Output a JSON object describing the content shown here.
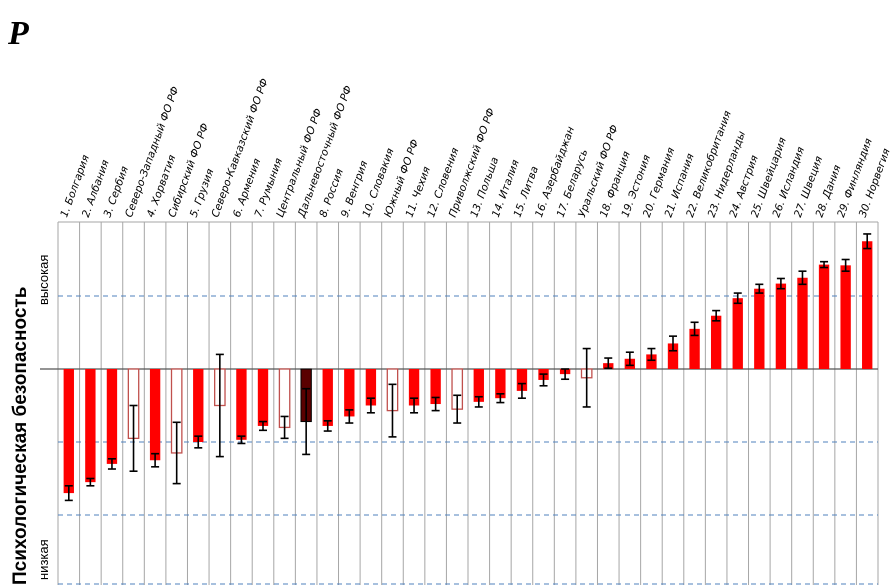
{
  "corner_letter": "P",
  "chart_data": {
    "type": "bar",
    "ylabel": "Психологическая безопасность",
    "ylabel_high": "высокая",
    "ylabel_low": "низкая",
    "ylim": [
      -3,
      2
    ],
    "grid": true,
    "colors": {
      "filled": "#ff0000",
      "hollow_edge": "#c0504d",
      "hollow_fill": "#ffffff",
      "error": "#000000",
      "dark_bar": "#5a0000"
    },
    "categories": [
      "1. Болгария",
      "2. Албания",
      "3. Сербия",
      "Северо-Западный  ФО РФ",
      "4. Хорватия",
      "Сибирский  ФО РФ",
      "5. Грузия",
      "Северо-Кавказский   ФО РФ",
      "6. Армения",
      "7. Румыния",
      "Центральный  ФО РФ",
      "Дальневосточный  ФО РФ",
      "8. Россия",
      "9. Венгрия",
      "10. Словакия",
      "Южный ФО РФ",
      "11. Чехия",
      "12. Словения",
      "Приволжский  ФО РФ",
      "13. Польша",
      "14. Италия",
      "15. Литва",
      "16. Азербайджан",
      "17. Беларусь",
      "Уральский  ФО РФ",
      "18. Франция",
      "19. Эстония",
      "20. Германия",
      "21. Испания",
      "22. Великобритания",
      "23. Нидерланды",
      "24. Австрия",
      "25. Швейцария",
      "26. Исландия",
      "27. Швеция",
      "28. Дания",
      "29. Финляндия",
      "30. Норвегия"
    ],
    "values": [
      -1.7,
      -1.55,
      -1.3,
      -0.95,
      -1.25,
      -1.15,
      -1.0,
      -0.5,
      -0.97,
      -0.78,
      -0.8,
      -0.72,
      -0.78,
      -0.65,
      -0.5,
      -0.57,
      -0.5,
      -0.48,
      -0.55,
      -0.45,
      -0.4,
      -0.3,
      -0.15,
      -0.07,
      -0.12,
      0.08,
      0.14,
      0.2,
      0.35,
      0.55,
      0.73,
      0.97,
      1.1,
      1.17,
      1.25,
      1.43,
      1.42,
      1.75
    ],
    "errors": [
      0.1,
      0.05,
      0.07,
      0.45,
      0.09,
      0.42,
      0.08,
      0.7,
      0.05,
      0.06,
      0.15,
      0.45,
      0.07,
      0.09,
      0.1,
      0.36,
      0.1,
      0.09,
      0.19,
      0.07,
      0.06,
      0.1,
      0.08,
      0.07,
      0.4,
      0.07,
      0.09,
      0.08,
      0.1,
      0.09,
      0.07,
      0.07,
      0.06,
      0.07,
      0.09,
      0.04,
      0.08,
      0.1
    ],
    "styles": [
      "filled",
      "filled",
      "filled",
      "hollow",
      "filled",
      "hollow",
      "filled",
      "hollow",
      "filled",
      "filled",
      "hollow",
      "hollow-dark",
      "filled",
      "filled",
      "filled",
      "hollow",
      "filled",
      "filled",
      "hollow",
      "filled",
      "filled",
      "filled",
      "filled",
      "filled",
      "hollow",
      "filled",
      "filled",
      "filled",
      "filled",
      "filled",
      "filled",
      "filled",
      "filled",
      "filled",
      "filled",
      "filled",
      "filled",
      "filled"
    ]
  }
}
